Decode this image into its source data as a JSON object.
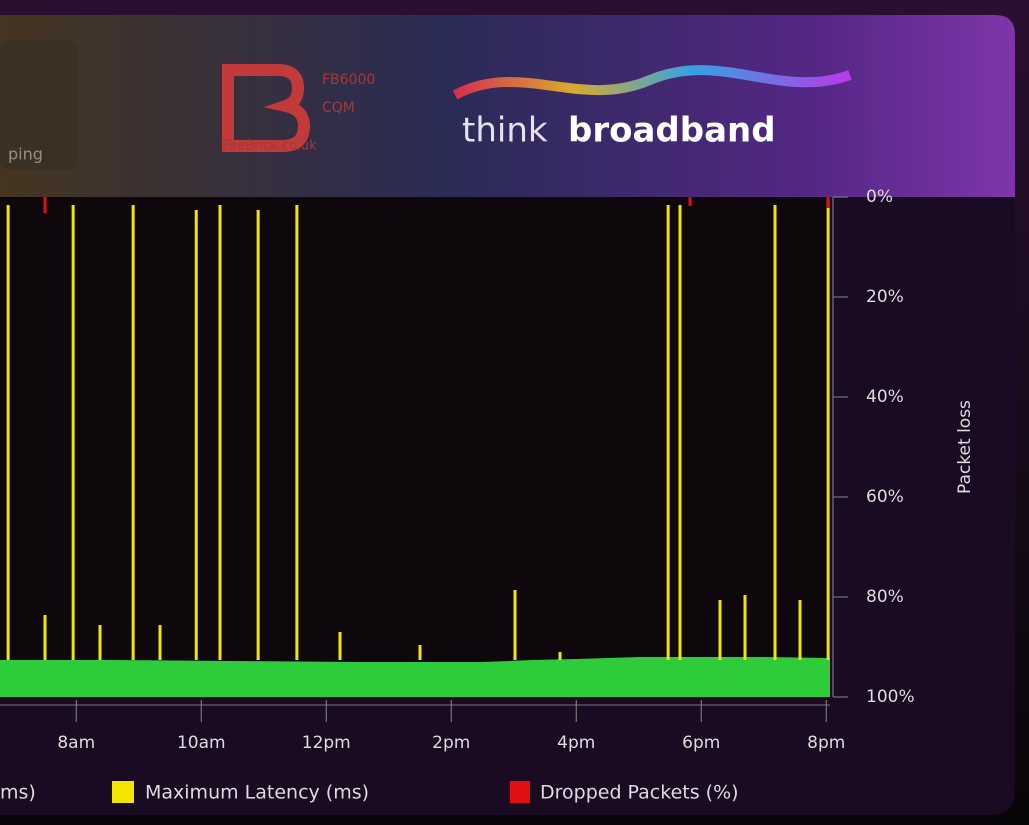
{
  "header": {
    "left_label": "ping",
    "brand_model": "FB6000",
    "brand_sub": "CQM",
    "brand_site": "FireBrick.co.uk",
    "logo_think": "think",
    "logo_broadband": "broadband"
  },
  "chart_data": {
    "type": "line",
    "y_label": "Packet loss",
    "inverted": true,
    "xlim": [
      6.78,
      20.06
    ],
    "xticks": [
      {
        "value": 8,
        "label": "8am"
      },
      {
        "value": 10,
        "label": "10am"
      },
      {
        "value": 12,
        "label": "12pm"
      },
      {
        "value": 14,
        "label": "2pm"
      },
      {
        "value": 16,
        "label": "4pm"
      },
      {
        "value": 18,
        "label": "6pm"
      },
      {
        "value": 20,
        "label": "8pm"
      }
    ],
    "ylim": [
      0,
      100
    ],
    "yticks": [
      {
        "value": 0,
        "label": "0%"
      },
      {
        "value": 20,
        "label": "20%"
      },
      {
        "value": 40,
        "label": "40%"
      },
      {
        "value": 60,
        "label": "60%"
      },
      {
        "value": 80,
        "label": "80%"
      },
      {
        "value": 100,
        "label": "100%"
      }
    ],
    "series": [
      {
        "name": "ms)",
        "color": "#2ecc3a",
        "style": "area",
        "x": [
          6.78,
          8.5,
          10.5,
          12.5,
          14.5,
          15.3,
          16.0,
          17.0,
          18.0,
          19.0,
          20.06
        ],
        "values": [
          92.6,
          92.6,
          92.8,
          93.0,
          93.0,
          92.6,
          92.4,
          92.0,
          92.0,
          92.0,
          92.2
        ]
      },
      {
        "name": "Maximum Latency (ms)",
        "color": "#f2e600",
        "style": "spikes",
        "x": [
          6.91,
          7.5,
          7.95,
          8.38,
          8.91,
          9.34,
          9.92,
          10.3,
          10.91,
          11.53,
          12.22,
          13.5,
          15.02,
          15.74,
          17.47,
          17.66,
          18.3,
          18.7,
          19.18,
          19.58,
          20.03
        ],
        "values": [
          1.6,
          83.6,
          1.6,
          85.6,
          1.6,
          85.6,
          2.6,
          1.6,
          2.6,
          1.6,
          87,
          89.6,
          78.6,
          91,
          1.6,
          1.6,
          80.6,
          79.6,
          1.6,
          80.6,
          0.6
        ]
      },
      {
        "name": "Dropped Packets (%)",
        "color": "#e01010",
        "style": "drops",
        "x": [
          7.5,
          17.82,
          20.03
        ],
        "values": [
          2,
          0.6,
          1
        ]
      }
    ]
  }
}
